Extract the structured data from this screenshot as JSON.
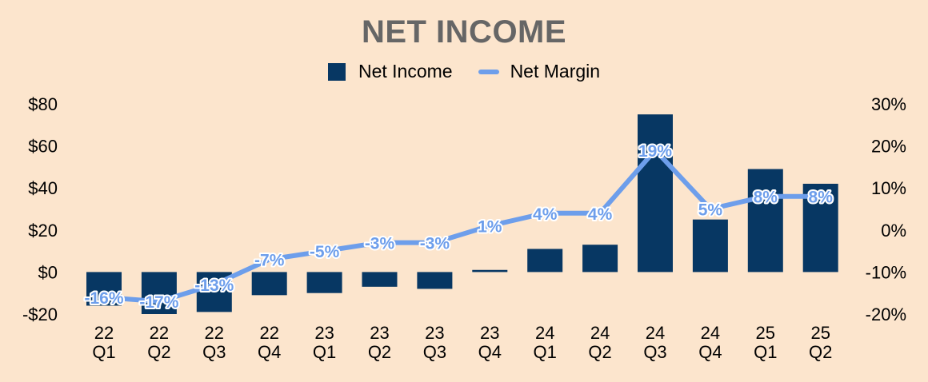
{
  "chart_data": {
    "type": "bar",
    "title": "NET INCOME",
    "categories": [
      [
        "22",
        "Q1"
      ],
      [
        "22",
        "Q2"
      ],
      [
        "22",
        "Q3"
      ],
      [
        "22",
        "Q4"
      ],
      [
        "23",
        "Q1"
      ],
      [
        "23",
        "Q2"
      ],
      [
        "23",
        "Q3"
      ],
      [
        "23",
        "Q4"
      ],
      [
        "24",
        "Q1"
      ],
      [
        "24",
        "Q2"
      ],
      [
        "24",
        "Q3"
      ],
      [
        "24",
        "Q4"
      ],
      [
        "25",
        "Q1"
      ],
      [
        "25",
        "Q2"
      ]
    ],
    "series": [
      {
        "name": "Net Income",
        "type": "bar",
        "axis": "left",
        "color": "#073763",
        "values": [
          -16,
          -20,
          -19,
          -11,
          -10,
          -7,
          -8,
          1,
          11,
          13,
          75,
          25,
          49,
          42
        ]
      },
      {
        "name": "Net Margin",
        "type": "line",
        "axis": "right",
        "color": "#6d9eeb",
        "values": [
          -16,
          -17,
          -13,
          -7,
          -5,
          -3,
          -3,
          1,
          4,
          4,
          19,
          5,
          8,
          8
        ],
        "labels": [
          "-16%",
          "-17%",
          "-13%",
          "-7%",
          "-5%",
          "-3%",
          "-3%",
          "1%",
          "4%",
          "4%",
          "19%",
          "5%",
          "8%",
          "8%"
        ]
      }
    ],
    "y_left": {
      "range": [
        -20,
        80
      ],
      "ticks": [
        80,
        60,
        40,
        20,
        0,
        -20
      ],
      "tick_labels": [
        "$80",
        "$60",
        "$40",
        "$20",
        "$0",
        "-$20"
      ]
    },
    "y_right": {
      "range": [
        -20,
        30
      ],
      "ticks": [
        30,
        20,
        10,
        0,
        -10,
        -20
      ],
      "tick_labels": [
        "30%",
        "20%",
        "10%",
        "0%",
        "-10%",
        "-20%"
      ]
    },
    "legend": "top-center",
    "grid": false
  }
}
